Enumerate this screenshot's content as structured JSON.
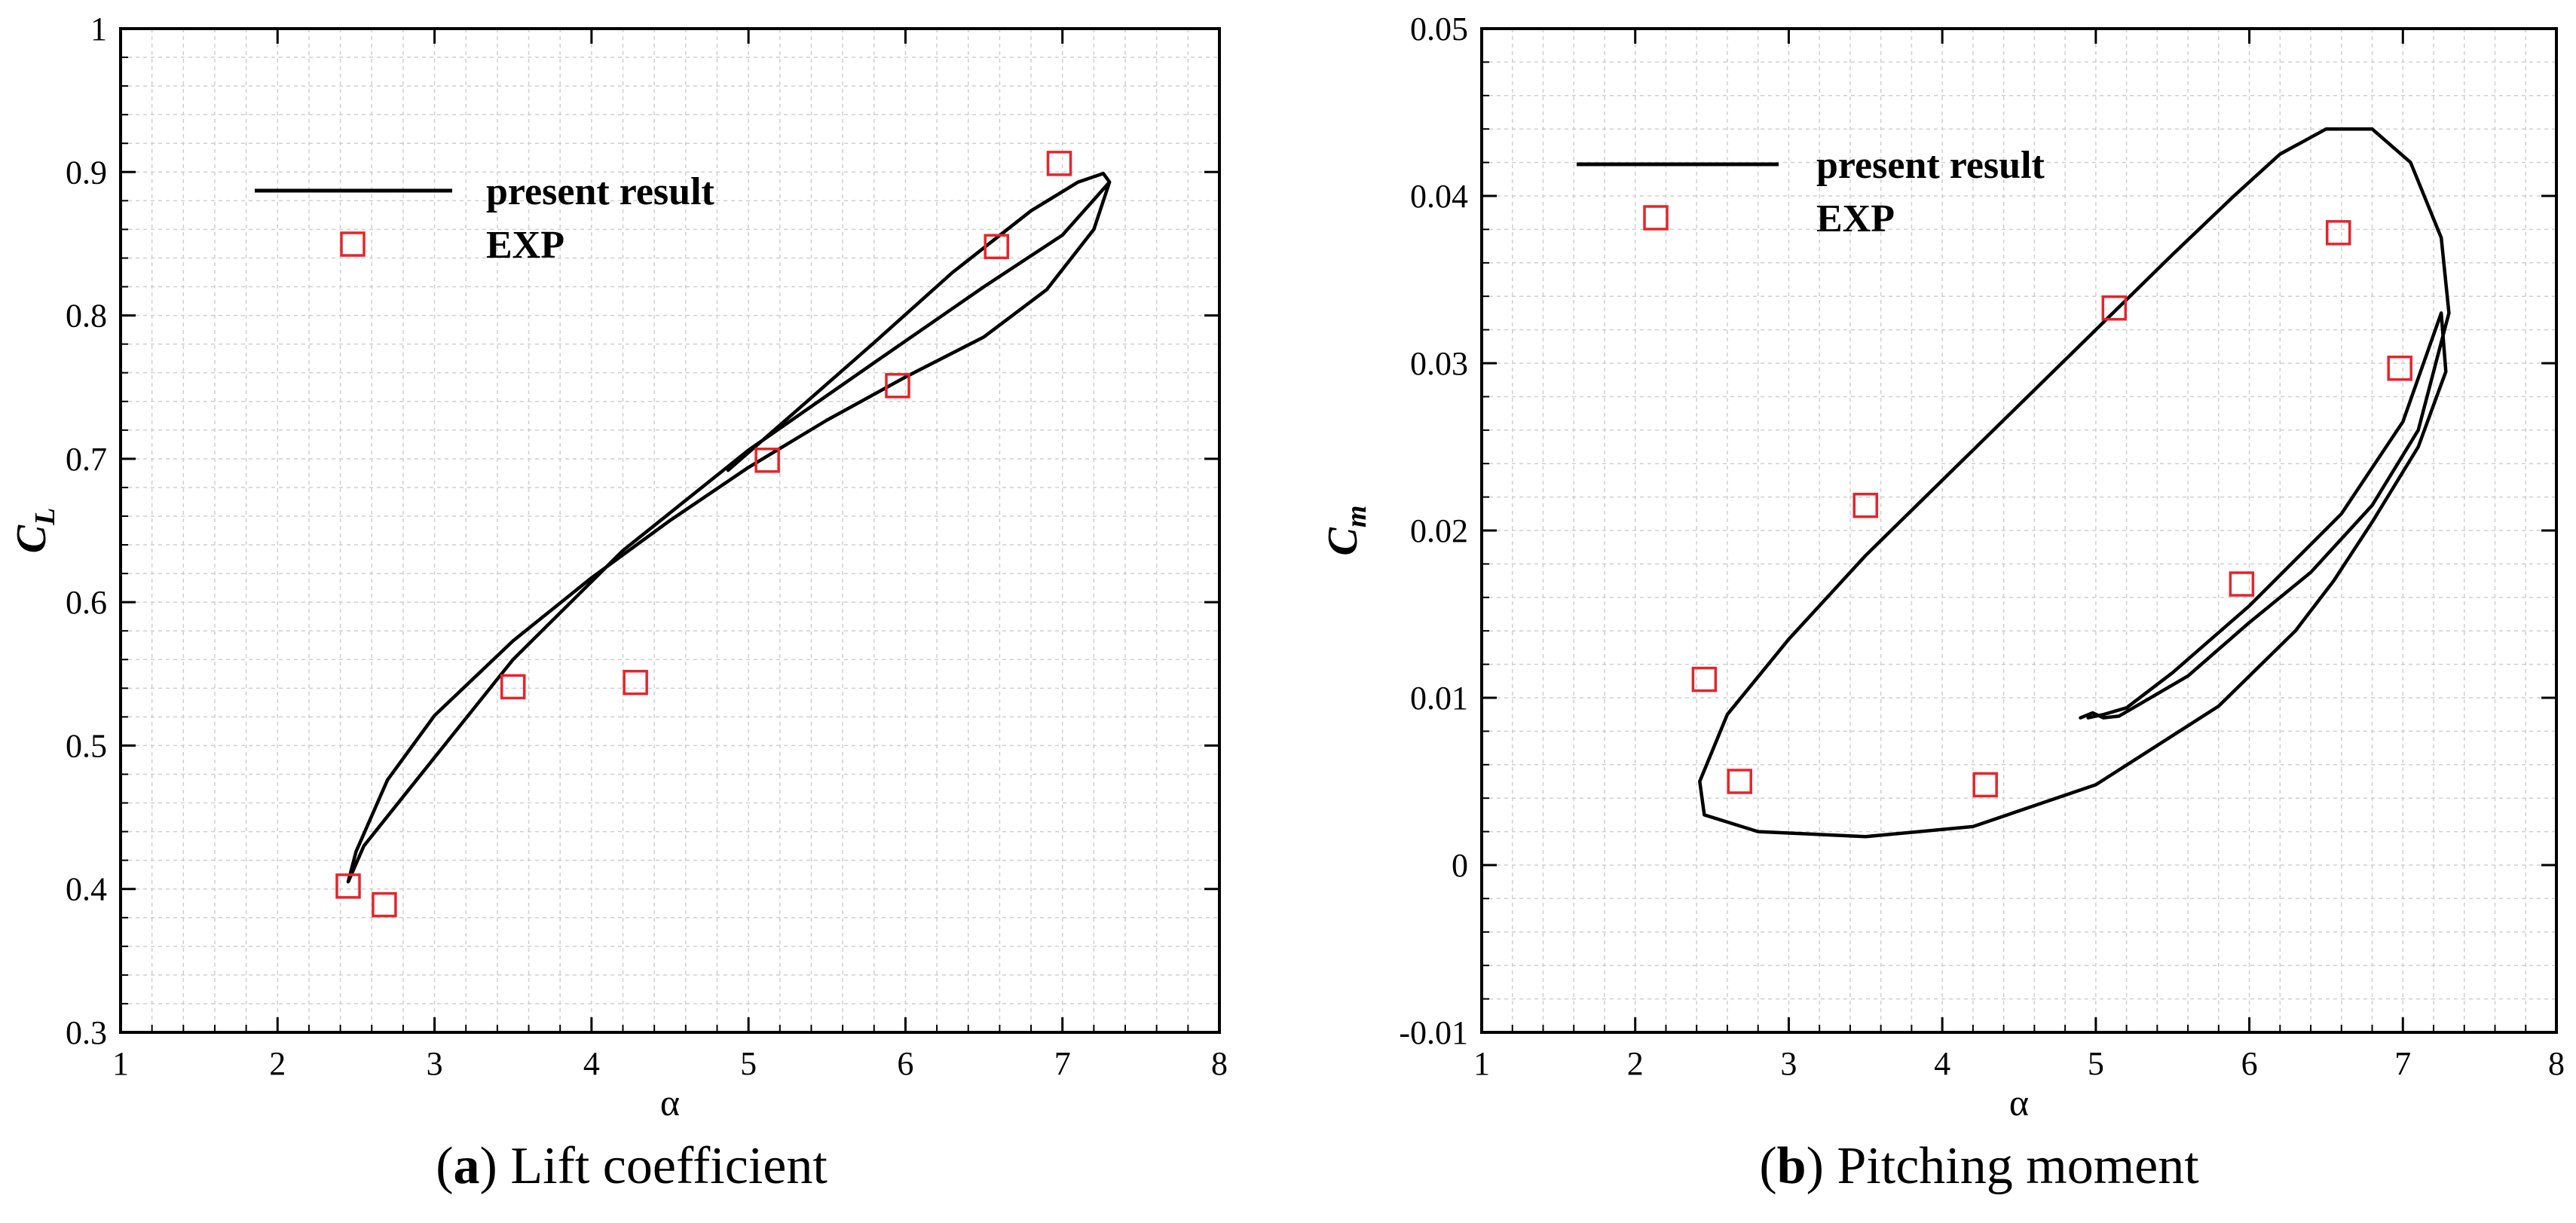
{
  "chart_data": [
    {
      "type": "line",
      "caption": {
        "letter": "a",
        "text": "Lift coefficient"
      },
      "xlabel": "α",
      "ylabel": {
        "main": "C",
        "sub": "L"
      },
      "xlim": [
        1,
        8
      ],
      "ylim": [
        0.3,
        1.0
      ],
      "xticks": [
        1,
        2,
        3,
        4,
        5,
        6,
        7,
        8
      ],
      "yticks": [
        0.3,
        0.4,
        0.5,
        0.6,
        0.7,
        0.8,
        0.9,
        1.0
      ],
      "ytick_labels": [
        "0.3",
        "0.4",
        "0.5",
        "0.6",
        "0.7",
        "0.8",
        "0.9",
        "1"
      ],
      "grid": true,
      "legend": {
        "position": "top-left",
        "line_label": "present result",
        "marker_label": "EXP"
      },
      "series": [
        {
          "name": "present result",
          "style": "line",
          "color": "#000000",
          "x": [
            4.87,
            5.3,
            5.8,
            6.3,
            6.8,
            7.1,
            7.26,
            7.3,
            7.2,
            6.9,
            6.5,
            6.0,
            5.5,
            5.0,
            4.5,
            4.0,
            3.5,
            3.0,
            2.7,
            2.5,
            2.45,
            2.55,
            2.9,
            3.5,
            4.2,
            5.0,
            5.8,
            6.5,
            7.0,
            7.3
          ],
          "y": [
            0.692,
            0.733,
            0.781,
            0.83,
            0.873,
            0.893,
            0.899,
            0.893,
            0.86,
            0.818,
            0.785,
            0.757,
            0.727,
            0.694,
            0.657,
            0.617,
            0.573,
            0.521,
            0.476,
            0.426,
            0.405,
            0.43,
            0.478,
            0.56,
            0.636,
            0.706,
            0.767,
            0.82,
            0.856,
            0.893
          ]
        },
        {
          "name": "EXP",
          "style": "marker",
          "color": "#e8232b",
          "x": [
            2.45,
            2.68,
            3.5,
            4.28,
            5.12,
            5.95,
            6.58,
            6.98
          ],
          "y": [
            0.402,
            0.389,
            0.541,
            0.544,
            0.699,
            0.751,
            0.848,
            0.906
          ]
        }
      ]
    },
    {
      "type": "line",
      "caption": {
        "letter": "b",
        "text": "Pitching moment"
      },
      "xlabel": "α",
      "ylabel": {
        "main": "C",
        "sub": "m"
      },
      "xlim": [
        1,
        8
      ],
      "ylim": [
        -0.01,
        0.05
      ],
      "xticks": [
        1,
        2,
        3,
        4,
        5,
        6,
        7,
        8
      ],
      "yticks": [
        -0.01,
        0,
        0.01,
        0.02,
        0.03,
        0.04,
        0.05
      ],
      "ytick_labels": [
        "-0.01",
        "0",
        "0.01",
        "0.02",
        "0.03",
        "0.04",
        "0.05"
      ],
      "grid": true,
      "legend": {
        "position": "top-left",
        "line_label": "present result",
        "marker_label": "EXP"
      },
      "series": [
        {
          "name": "present result",
          "style": "line",
          "color": "#000000",
          "x": [
            4.9,
            4.98,
            5.05,
            5.15,
            5.3,
            5.6,
            6.0,
            6.4,
            6.8,
            7.1,
            7.3,
            7.25,
            7.05,
            6.8,
            6.5,
            6.2,
            5.9,
            5.5,
            5.0,
            4.5,
            4.0,
            3.5,
            3.0,
            2.6,
            2.42,
            2.45,
            2.8,
            3.5,
            4.2,
            5.0,
            5.8,
            6.3,
            6.55,
            6.8,
            7.1,
            7.28,
            7.25,
            7.0,
            6.6,
            6.0,
            5.5,
            5.2,
            5.05,
            4.95
          ],
          "y": [
            0.0088,
            0.0091,
            0.0088,
            0.0089,
            0.0097,
            0.0113,
            0.0145,
            0.0175,
            0.0215,
            0.026,
            0.033,
            0.0375,
            0.042,
            0.044,
            0.044,
            0.0425,
            0.04,
            0.0365,
            0.032,
            0.0275,
            0.023,
            0.0185,
            0.0135,
            0.009,
            0.005,
            0.003,
            0.002,
            0.0017,
            0.0023,
            0.0048,
            0.0095,
            0.014,
            0.017,
            0.0205,
            0.025,
            0.0295,
            0.033,
            0.0265,
            0.021,
            0.0155,
            0.0115,
            0.0094,
            0.009,
            0.0088
          ]
        },
        {
          "name": "EXP",
          "style": "marker",
          "color": "#e8232b",
          "x": [
            2.45,
            2.68,
            3.5,
            4.28,
            5.12,
            5.95,
            6.58,
            6.98
          ],
          "y": [
            0.0111,
            0.005,
            0.0215,
            0.0048,
            0.0333,
            0.0168,
            0.0378,
            0.0297
          ]
        }
      ]
    }
  ]
}
